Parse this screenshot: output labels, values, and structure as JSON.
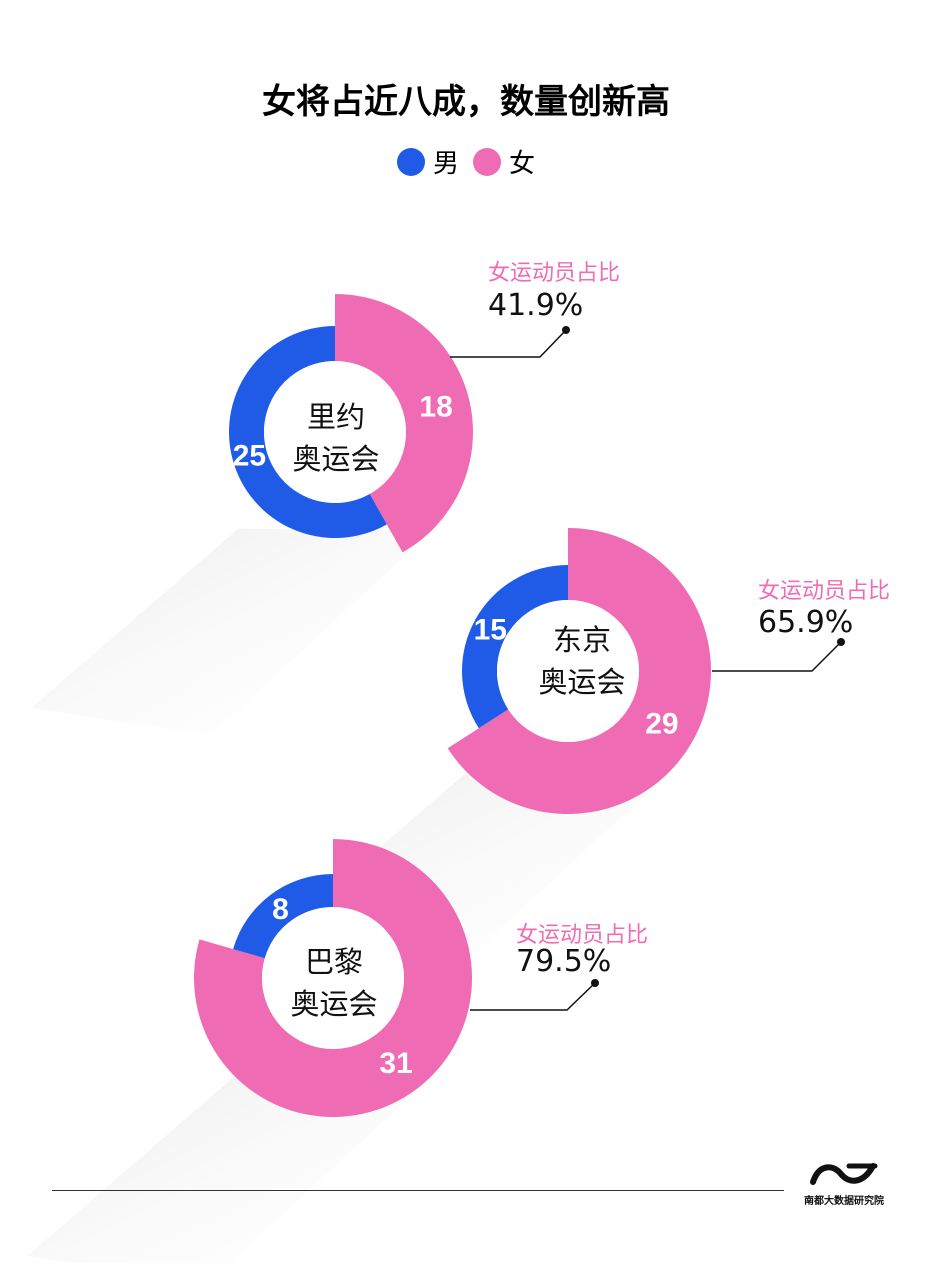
{
  "title": "女将占近八成，数量创新高",
  "legend": {
    "male": "男",
    "female": "女"
  },
  "colors": {
    "male": "#1f5be6",
    "female": "#ef6cb4"
  },
  "chart_data": {
    "type": "pie",
    "series_names": [
      "男",
      "女"
    ],
    "charts": [
      {
        "name": "里约奥运会",
        "label_line1": "里约",
        "label_line2": "奥运会",
        "male": 25,
        "female": 18,
        "ratio_label": "女运动员占比",
        "ratio": "41.9%"
      },
      {
        "name": "东京奥运会",
        "label_line1": "东京",
        "label_line2": "奥运会",
        "male": 15,
        "female": 29,
        "ratio_label": "女运动员占比",
        "ratio": "65.9%"
      },
      {
        "name": "巴黎奥运会",
        "label_line1": "巴黎",
        "label_line2": "奥运会",
        "male": 8,
        "female": 31,
        "ratio_label": "女运动员占比",
        "ratio": "79.5%"
      }
    ]
  },
  "logo": {
    "text": "南都大数据研究院",
    "icon": "nandu-wave-logo-icon"
  }
}
